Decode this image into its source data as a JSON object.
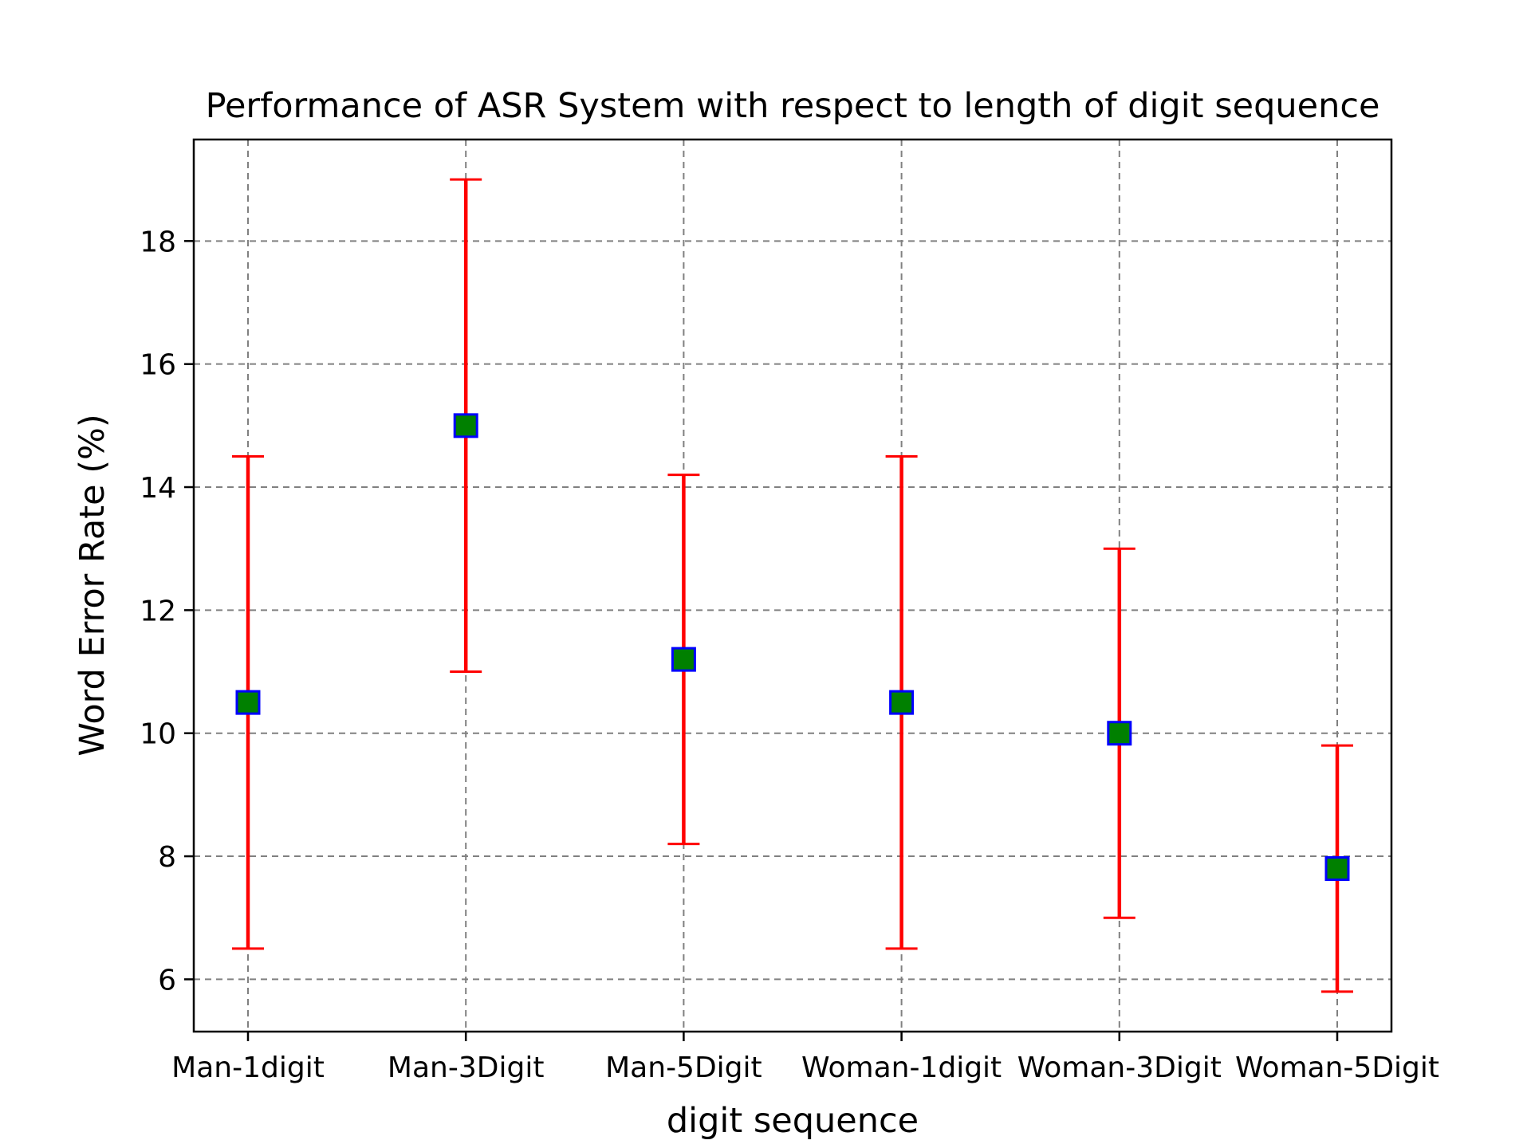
{
  "chart_data": {
    "type": "scatter",
    "title": "Performance of ASR System with respect to length of digit sequence",
    "xlabel": "digit sequence",
    "ylabel": "Word Error Rate (%)",
    "categories": [
      "Man-1digit",
      "Man-3Digit",
      "Man-5Digit",
      "Woman-1digit",
      "Woman-3Digit",
      "Woman-5Digit"
    ],
    "values": [
      10.5,
      15.0,
      11.2,
      10.5,
      10.0,
      7.8
    ],
    "error_low": [
      6.5,
      11.0,
      8.2,
      6.5,
      7.0,
      5.8
    ],
    "error_high": [
      14.5,
      19.0,
      14.2,
      14.5,
      13.0,
      9.8
    ],
    "ylim": [
      5.15,
      19.65
    ],
    "yticks": [
      6,
      8,
      10,
      12,
      14,
      16,
      18
    ],
    "grid": true,
    "marker": "square",
    "colors": {
      "marker_fill": "#008000",
      "marker_edge": "#0000ff",
      "error_bar": "#ff0000",
      "grid": "#808080"
    }
  }
}
